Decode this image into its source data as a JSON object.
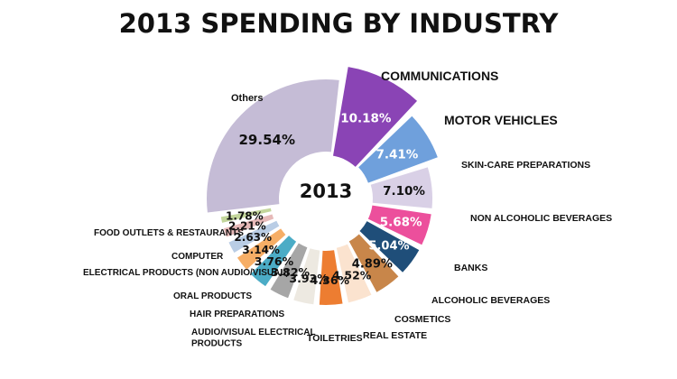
{
  "chart_data": {
    "type": "pie",
    "title": "2013 SPENDING BY INDUSTRY",
    "center_label": "2013",
    "slices": [
      {
        "label": "COMMUNICATIONS",
        "value": 10.18,
        "display": "10.18%",
        "color": "#8a44b5"
      },
      {
        "label": "MOTOR VEHICLES",
        "value": 7.41,
        "display": "7.41%",
        "color": "#6fa0dc"
      },
      {
        "label": "SKIN-CARE PREPARATIONS",
        "value": 7.1,
        "display": "7.10%",
        "color": "#d9d0e6"
      },
      {
        "label": "NON ALCOHOLIC BEVERAGES",
        "value": 5.68,
        "display": "5.68%",
        "color": "#ec4f9c"
      },
      {
        "label": "BANKS",
        "value": 5.04,
        "display": "5.04%",
        "color": "#1f4e79"
      },
      {
        "label": "ALCOHOLIC BEVERAGES",
        "value": 4.89,
        "display": "4.89%",
        "color": "#c8864a"
      },
      {
        "label": "COSMETICS",
        "value": 4.52,
        "display": "4.52%",
        "color": "#fbe3cf"
      },
      {
        "label": "REAL ESTATE",
        "value": 4.36,
        "display": "4.36%",
        "color": "#ed7d31"
      },
      {
        "label": "TOILETRIES",
        "value": 3.93,
        "display": "3.93%",
        "color": "#ede9e1"
      },
      {
        "label": "AUDIO/VISUAL ELECTRICAL PRODUCTS",
        "value": 3.82,
        "display": "3.82%",
        "color": "#a6a6a6"
      },
      {
        "label": "HAIR PREPARATIONS",
        "value": 3.76,
        "display": "3.76%",
        "color": "#4bacc6"
      },
      {
        "label": "ORAL PRODUCTS",
        "value": 3.14,
        "display": "3.14%",
        "color": "#f6ae66"
      },
      {
        "label": "ELECTRICAL PRODUCTS (NON AUDIO/VISUAL)",
        "value": 2.63,
        "display": "2.63%",
        "color": "#b9cde5"
      },
      {
        "label": "COMPUTER",
        "value": 2.21,
        "display": "2.21%",
        "color": "#e6b9b8"
      },
      {
        "label": "FOOD OUTLETS & RESTAURANTS",
        "value": 1.78,
        "display": "1.78%",
        "color": "#c3d69b"
      },
      {
        "label": "Others",
        "value": 29.54,
        "display": "29.54%",
        "color": "#c5bcd6"
      }
    ]
  }
}
